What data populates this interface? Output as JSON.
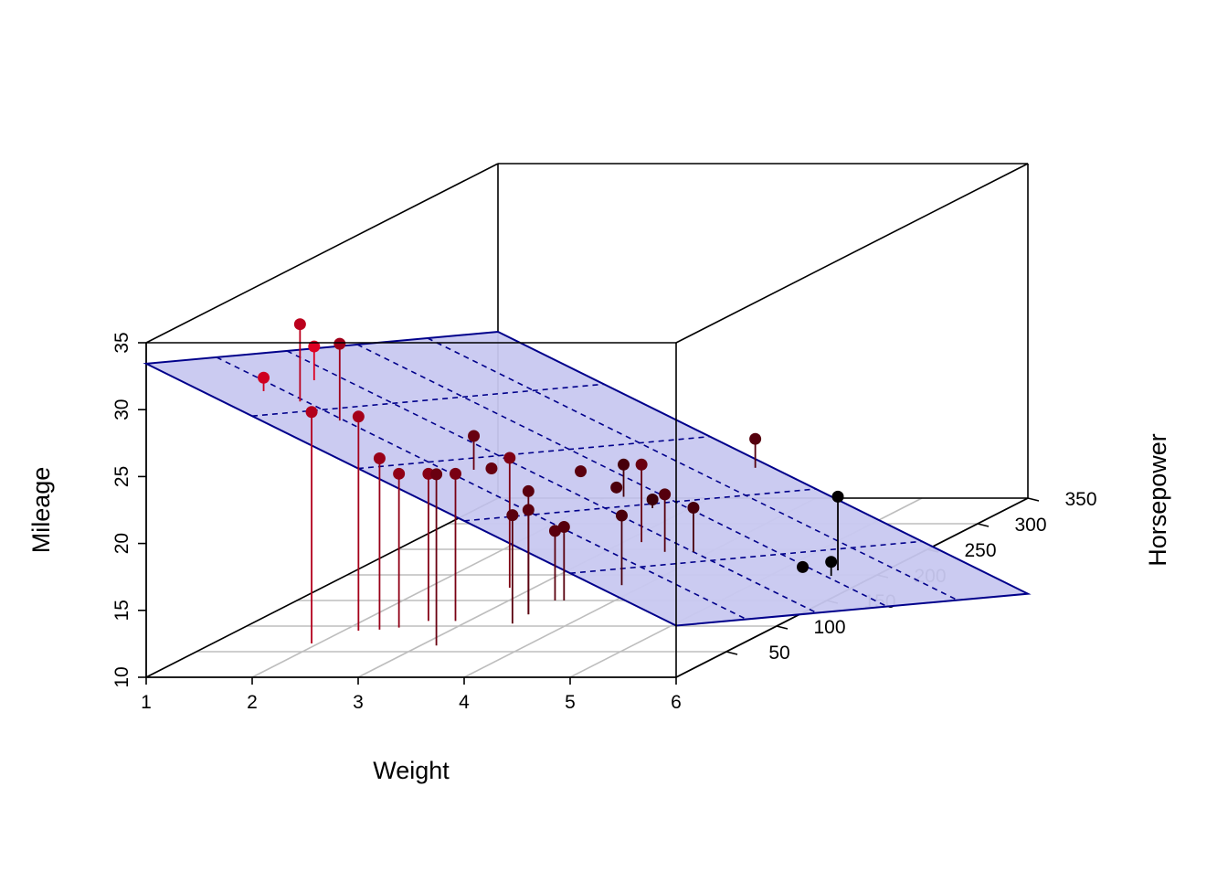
{
  "chart_data": {
    "type": "scatter",
    "title": "",
    "xlabel": "Weight",
    "ylabel": "Horsepower",
    "zlabel": "Mileage",
    "x_ticks": [
      "1",
      "2",
      "3",
      "4",
      "5",
      "6"
    ],
    "y_ticks": [
      "50",
      "100",
      "150",
      "200",
      "250",
      "300",
      "350"
    ],
    "z_ticks": [
      "10",
      "15",
      "20",
      "25",
      "30",
      "35"
    ],
    "xlim": [
      1,
      6
    ],
    "ylim": [
      0,
      350
    ],
    "zlim": [
      10,
      35
    ],
    "has_regression_plane": true,
    "plane_color": "#c8c8f0",
    "plane_edge_color": "#00008b",
    "grid": true,
    "point_color_low_x": "#dd0022",
    "point_color_high_x": "#000000",
    "points": [
      {
        "x": 1.513,
        "y": 113,
        "z": 30.4
      },
      {
        "x": 1.615,
        "y": 52,
        "z": 30.4
      },
      {
        "x": 1.835,
        "y": 65,
        "z": 33.9
      },
      {
        "x": 1.935,
        "y": 66,
        "z": 27.3
      },
      {
        "x": 2.14,
        "y": 91,
        "z": 26.0
      },
      {
        "x": 2.2,
        "y": 66,
        "z": 32.4
      },
      {
        "x": 2.32,
        "y": 93,
        "z": 22.8
      },
      {
        "x": 2.465,
        "y": 97,
        "z": 21.5
      },
      {
        "x": 2.62,
        "y": 110,
        "z": 21.0
      },
      {
        "x": 2.77,
        "y": 175,
        "z": 19.7
      },
      {
        "x": 2.875,
        "y": 110,
        "z": 21.0
      },
      {
        "x": 3.15,
        "y": 62,
        "z": 22.8
      },
      {
        "x": 3.17,
        "y": 264,
        "z": 15.8
      },
      {
        "x": 3.19,
        "y": 95,
        "z": 24.4
      },
      {
        "x": 3.215,
        "y": 110,
        "z": 21.4
      },
      {
        "x": 3.435,
        "y": 150,
        "z": 15.2
      },
      {
        "x": 3.44,
        "y": 175,
        "z": 18.7
      },
      {
        "x": 3.44,
        "y": 123,
        "z": 19.2
      },
      {
        "x": 3.44,
        "y": 123,
        "z": 17.8
      },
      {
        "x": 3.46,
        "y": 105,
        "z": 18.1
      },
      {
        "x": 3.52,
        "y": 150,
        "z": 15.5
      },
      {
        "x": 3.57,
        "y": 245,
        "z": 14.3
      },
      {
        "x": 3.57,
        "y": 335,
        "z": 15.0
      },
      {
        "x": 3.73,
        "y": 180,
        "z": 17.3
      },
      {
        "x": 3.78,
        "y": 180,
        "z": 15.2
      },
      {
        "x": 3.84,
        "y": 245,
        "z": 13.3
      },
      {
        "x": 3.845,
        "y": 175,
        "z": 19.2
      },
      {
        "x": 4.07,
        "y": 180,
        "z": 16.4
      },
      {
        "x": 5.25,
        "y": 205,
        "z": 10.4
      },
      {
        "x": 5.345,
        "y": 230,
        "z": 14.7
      },
      {
        "x": 5.424,
        "y": 215,
        "z": 10.4
      }
    ]
  }
}
